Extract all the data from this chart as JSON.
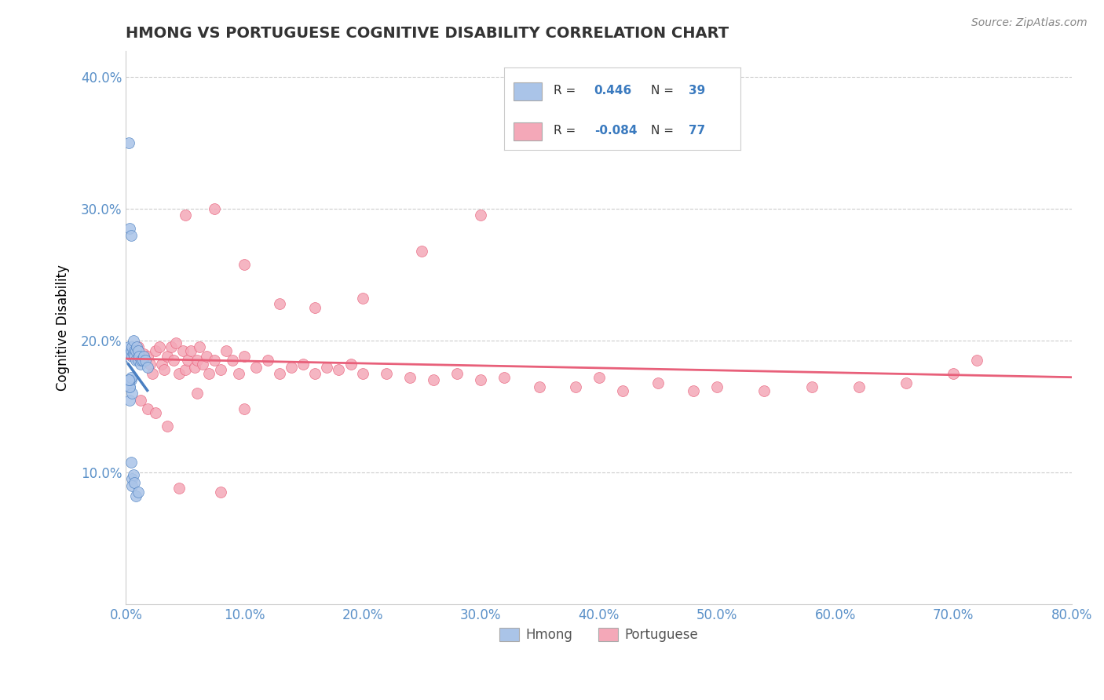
{
  "title": "HMONG VS PORTUGUESE COGNITIVE DISABILITY CORRELATION CHART",
  "source": "Source: ZipAtlas.com",
  "ylabel_label": "Cognitive Disability",
  "xlim": [
    0.0,
    0.8
  ],
  "ylim": [
    0.0,
    0.42
  ],
  "xticks": [
    0.0,
    0.1,
    0.2,
    0.3,
    0.4,
    0.5,
    0.6,
    0.7,
    0.8
  ],
  "xticklabels": [
    "0.0%",
    "10.0%",
    "20.0%",
    "30.0%",
    "40.0%",
    "50.0%",
    "60.0%",
    "70.0%",
    "80.0%"
  ],
  "yticks": [
    0.1,
    0.2,
    0.3,
    0.4
  ],
  "yticklabels": [
    "10.0%",
    "20.0%",
    "30.0%",
    "40.0%"
  ],
  "grid_color": "#cccccc",
  "background_color": "#ffffff",
  "hmong_color": "#aac4e8",
  "portuguese_color": "#f4a8b8",
  "hmong_line_color": "#4a7fc1",
  "portuguese_line_color": "#e8607a",
  "legend_r_hmong": "0.446",
  "legend_n_hmong": "39",
  "legend_r_portuguese": "-0.084",
  "legend_n_portuguese": "77",
  "hmong_x": [
    0.002,
    0.002,
    0.003,
    0.003,
    0.003,
    0.004,
    0.004,
    0.004,
    0.005,
    0.005,
    0.005,
    0.005,
    0.006,
    0.006,
    0.006,
    0.007,
    0.007,
    0.007,
    0.008,
    0.008,
    0.008,
    0.009,
    0.01,
    0.01,
    0.01,
    0.011,
    0.012,
    0.013,
    0.014,
    0.015,
    0.016,
    0.018,
    0.003,
    0.004,
    0.005,
    0.003,
    0.003,
    0.004,
    0.002
  ],
  "hmong_y": [
    0.35,
    0.195,
    0.285,
    0.19,
    0.165,
    0.28,
    0.192,
    0.17,
    0.195,
    0.188,
    0.095,
    0.09,
    0.2,
    0.19,
    0.098,
    0.192,
    0.188,
    0.092,
    0.192,
    0.185,
    0.082,
    0.195,
    0.185,
    0.192,
    0.085,
    0.188,
    0.182,
    0.185,
    0.185,
    0.188,
    0.185,
    0.18,
    0.155,
    0.108,
    0.16,
    0.165,
    0.17,
    0.172,
    0.17
  ],
  "portuguese_x": [
    0.01,
    0.012,
    0.015,
    0.018,
    0.02,
    0.022,
    0.025,
    0.028,
    0.03,
    0.032,
    0.035,
    0.038,
    0.04,
    0.042,
    0.045,
    0.048,
    0.05,
    0.052,
    0.055,
    0.058,
    0.06,
    0.062,
    0.065,
    0.068,
    0.07,
    0.075,
    0.08,
    0.085,
    0.09,
    0.095,
    0.1,
    0.11,
    0.12,
    0.13,
    0.14,
    0.15,
    0.16,
    0.17,
    0.18,
    0.19,
    0.2,
    0.22,
    0.24,
    0.26,
    0.28,
    0.3,
    0.32,
    0.35,
    0.38,
    0.4,
    0.42,
    0.45,
    0.48,
    0.5,
    0.54,
    0.58,
    0.62,
    0.66,
    0.7,
    0.05,
    0.075,
    0.1,
    0.13,
    0.16,
    0.2,
    0.25,
    0.3,
    0.012,
    0.018,
    0.025,
    0.035,
    0.045,
    0.06,
    0.08,
    0.1,
    0.72
  ],
  "portuguese_y": [
    0.195,
    0.185,
    0.19,
    0.188,
    0.182,
    0.175,
    0.192,
    0.195,
    0.182,
    0.178,
    0.188,
    0.195,
    0.185,
    0.198,
    0.175,
    0.192,
    0.178,
    0.185,
    0.192,
    0.18,
    0.185,
    0.195,
    0.182,
    0.188,
    0.175,
    0.185,
    0.178,
    0.192,
    0.185,
    0.175,
    0.188,
    0.18,
    0.185,
    0.175,
    0.18,
    0.182,
    0.175,
    0.18,
    0.178,
    0.182,
    0.175,
    0.175,
    0.172,
    0.17,
    0.175,
    0.17,
    0.172,
    0.165,
    0.165,
    0.172,
    0.162,
    0.168,
    0.162,
    0.165,
    0.162,
    0.165,
    0.165,
    0.168,
    0.175,
    0.295,
    0.3,
    0.258,
    0.228,
    0.225,
    0.232,
    0.268,
    0.295,
    0.155,
    0.148,
    0.145,
    0.135,
    0.088,
    0.16,
    0.085,
    0.148,
    0.185
  ]
}
